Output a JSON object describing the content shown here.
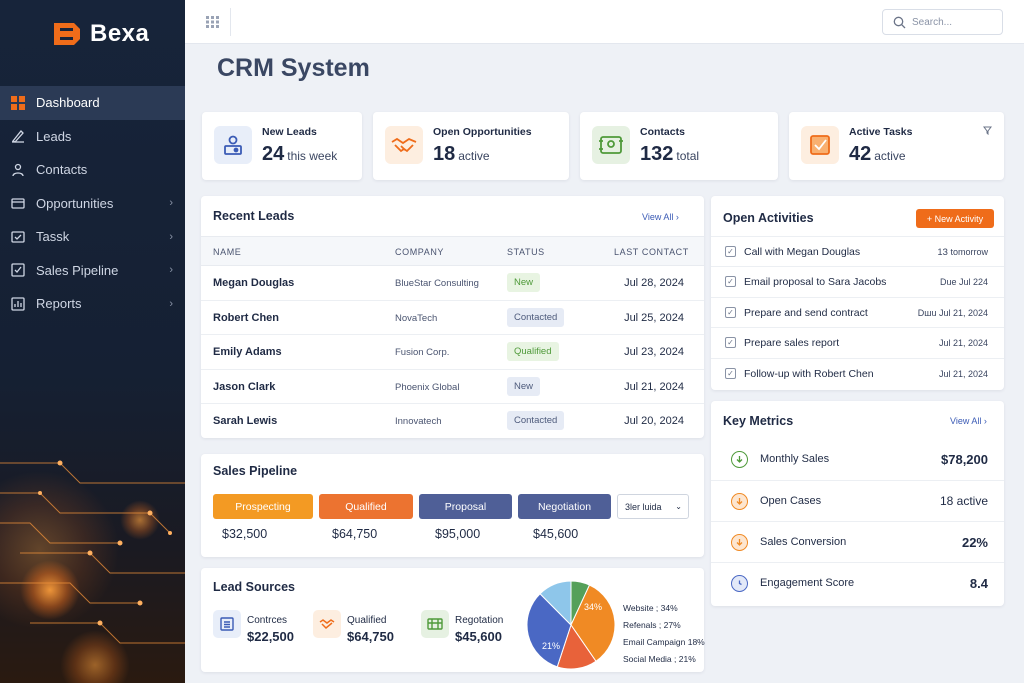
{
  "app": {
    "brand": "Bexa",
    "page_title": "CRM System"
  },
  "search": {
    "placeholder": "Search..."
  },
  "sidebar": {
    "items": [
      {
        "label": "Dashboard",
        "icon": "dashboard-icon",
        "active": true,
        "chevron": false
      },
      {
        "label": "Leads",
        "icon": "leads-icon",
        "active": false,
        "chevron": false
      },
      {
        "label": "Contacts",
        "icon": "contacts-icon",
        "active": false,
        "chevron": false
      },
      {
        "label": "Opportunities",
        "icon": "opportunities-icon",
        "active": false,
        "chevron": true
      },
      {
        "label": "Tassk",
        "icon": "tasks-icon",
        "active": false,
        "chevron": true
      },
      {
        "label": "Sales Pipeline",
        "icon": "pipeline-icon",
        "active": false,
        "chevron": true
      },
      {
        "label": "Reports",
        "icon": "reports-icon",
        "active": false,
        "chevron": true
      }
    ]
  },
  "stats": [
    {
      "label": "New Leads",
      "value": "24",
      "unit": "this week",
      "icon": "new-leads-icon"
    },
    {
      "label": "Open Opportunities",
      "value": "18",
      "unit": "active",
      "icon": "handshake-icon"
    },
    {
      "label": "Contacts",
      "value": "132",
      "unit": "total",
      "icon": "contacts-card-icon"
    },
    {
      "label": "Active Tasks",
      "value": "42",
      "unit": "active",
      "icon": "tasks-card-icon"
    }
  ],
  "recent_leads": {
    "title": "Recent Leads",
    "view_all": "View All",
    "columns": [
      "NAME",
      "COMPANY",
      "STATUS",
      "LAST CONTACT"
    ],
    "rows": [
      {
        "name": "Megan Douglas",
        "company": "BlueStar Consulting",
        "status": "New",
        "date": "Jul 28, 2024"
      },
      {
        "name": "Robert Chen",
        "company": "NovaTech",
        "status": "Contacted",
        "date": "Jul 25, 2024"
      },
      {
        "name": "Emily Adams",
        "company": "Fusion Corp.",
        "status": "Qualified",
        "date": "Jul 23, 2024"
      },
      {
        "name": "Jason Clark",
        "company": "Phoenix Global",
        "status": "New",
        "date": "Jul 21, 2024"
      },
      {
        "name": "Sarah Lewis",
        "company": "Innovatech",
        "status": "Contacted",
        "date": "Jul 20, 2024"
      }
    ]
  },
  "pipeline": {
    "title": "Sales Pipeline",
    "stages": [
      {
        "label": "Prospecting",
        "value": "$32,500",
        "color": "#f39a23"
      },
      {
        "label": "Qualified",
        "value": "$64,750",
        "color": "#ec7330"
      },
      {
        "label": "Proposal",
        "value": "$95,000",
        "color": "#4f5f97"
      },
      {
        "label": "Negotiation",
        "value": "$45,600",
        "color": "#4f5f97"
      }
    ],
    "select": "3ler luida"
  },
  "lead_sources": {
    "title": "Lead Sources",
    "items": [
      {
        "label": "Contrces",
        "value": "$22,500",
        "icon": "list-icon"
      },
      {
        "label": "Qualified",
        "value": "$64,750",
        "icon": "handshake-icon"
      },
      {
        "label": "Regotation",
        "value": "$45,600",
        "icon": "table-icon"
      }
    ]
  },
  "chart_data": {
    "type": "pie",
    "title": "",
    "slices": [
      {
        "name": "Website",
        "value": 34,
        "label": "Website ; 34%",
        "color": "#f08a24"
      },
      {
        "name": "Referrals",
        "value": 27,
        "label": "Refenals ; 27%",
        "color": "#e8623a"
      },
      {
        "name": "Email Campaign",
        "value": 18,
        "label": "Email Campaign 18%",
        "color": "#4a68c4"
      },
      {
        "name": "Social Media",
        "value": 21,
        "label": "Social Media ; 21%",
        "color": "#8ec6ea"
      }
    ],
    "inner_labels": [
      "34%",
      "21%"
    ],
    "legend_position": "right",
    "extra_slice_color": "#55a05a"
  },
  "activities": {
    "title": "Open Activities",
    "new_button": "+ New Activity",
    "items": [
      {
        "text": "Call with Megan Douglas",
        "date": "1З tomorrow"
      },
      {
        "text": "Email proposal to Sara Jacobs",
        "date": "Due Jul 224"
      },
      {
        "text": "Prepare and send contract",
        "date": "Dшu Jul 21, 2024"
      },
      {
        "text": "Prepare sales report",
        "date": "Jul 21, 2024"
      },
      {
        "text": "Follow-up with Robert Chen",
        "date": "Jul 21, 2024"
      }
    ]
  },
  "metrics": {
    "title": "Key Metrics",
    "view_all": "View All",
    "items": [
      {
        "label": "Monthly Sales",
        "value": "$78,200",
        "icon": "arrow-down-icon",
        "color": "#4f9a3a"
      },
      {
        "label": "Open Cases",
        "value": "18 active",
        "icon": "arrow-down-icon",
        "color": "#f08a24"
      },
      {
        "label": "Sales Conversion",
        "value": "22%",
        "icon": "arrow-down-icon",
        "color": "#f08a24"
      },
      {
        "label": "Engagement Score",
        "value": "8.4",
        "icon": "clock-icon",
        "color": "#4a68c4"
      }
    ]
  },
  "colors": {
    "accent": "#ef6c1a",
    "sidebar": "#17243a",
    "active_nav": "#2b3a55"
  }
}
